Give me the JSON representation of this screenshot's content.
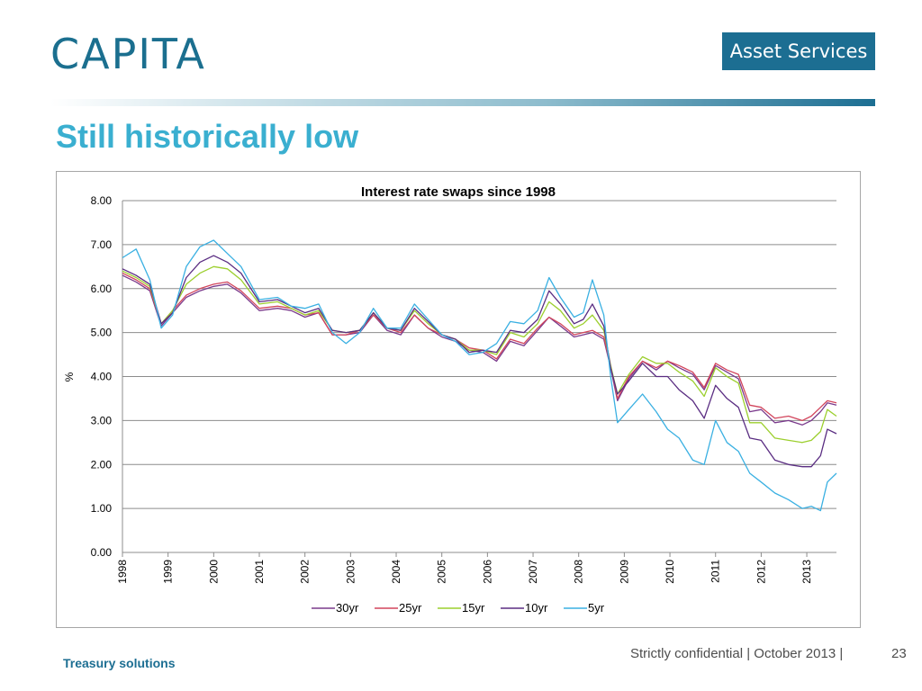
{
  "header": {
    "logo_text": "CAPITA",
    "badge_text": "Asset Services",
    "slide_title": "Still historically low"
  },
  "footer": {
    "left": "Treasury solutions",
    "right": "Strictly confidential | October 2013 |",
    "page": "23"
  },
  "colors": {
    "logo": "#1b6f8f",
    "badge_bg": "#1c6e92",
    "title": "#3aafd0"
  },
  "chart_data": {
    "type": "line",
    "title": "Interest rate swaps since 1998",
    "xlabel": "",
    "ylabel": "%",
    "ylim": [
      0,
      8
    ],
    "xlim": [
      1998.0,
      2013.65
    ],
    "yticks": [
      "0.00",
      "1.00",
      "2.00",
      "3.00",
      "4.00",
      "5.00",
      "6.00",
      "7.00",
      "8.00"
    ],
    "xticks": [
      "1998",
      "1999",
      "2000",
      "2001",
      "2002",
      "2003",
      "2004",
      "2005",
      "2006",
      "2007",
      "2008",
      "2009",
      "2010",
      "2011",
      "2012",
      "2013"
    ],
    "grid": true,
    "legend": "bottom",
    "series": [
      {
        "name": "30yr",
        "color": "#7a3a8c",
        "x": [
          1998.0,
          1998.3,
          1998.6,
          1998.85,
          1999.1,
          1999.4,
          1999.7,
          2000.0,
          2000.3,
          2000.6,
          2001.0,
          2001.4,
          2001.7,
          2002.0,
          2002.3,
          2002.6,
          2002.9,
          2003.2,
          2003.5,
          2003.8,
          2004.1,
          2004.4,
          2004.7,
          2005.0,
          2005.3,
          2005.6,
          2005.9,
          2006.2,
          2006.5,
          2006.8,
          2007.1,
          2007.35,
          2007.6,
          2007.9,
          2008.1,
          2008.3,
          2008.55,
          2008.7,
          2008.85,
          2009.1,
          2009.4,
          2009.7,
          2009.95,
          2010.2,
          2010.5,
          2010.75,
          2011.0,
          2011.25,
          2011.5,
          2011.75,
          2012.0,
          2012.3,
          2012.6,
          2012.9,
          2013.1,
          2013.3,
          2013.45,
          2013.65
        ],
        "values": [
          6.3,
          6.15,
          5.95,
          5.15,
          5.45,
          5.8,
          5.95,
          6.05,
          6.1,
          5.9,
          5.5,
          5.55,
          5.5,
          5.35,
          5.45,
          4.95,
          4.95,
          5.0,
          5.4,
          5.05,
          4.95,
          5.4,
          5.1,
          4.9,
          4.8,
          4.6,
          4.55,
          4.35,
          4.8,
          4.7,
          5.05,
          5.35,
          5.15,
          4.9,
          4.95,
          5.0,
          4.85,
          4.2,
          3.45,
          3.95,
          4.35,
          4.15,
          4.35,
          4.2,
          4.05,
          3.7,
          4.25,
          4.1,
          3.95,
          3.2,
          3.25,
          2.95,
          3.0,
          2.9,
          3.0,
          3.2,
          3.4,
          3.35
        ]
      },
      {
        "name": "25yr",
        "color": "#d2455c",
        "x": [
          1998.0,
          1998.3,
          1998.6,
          1998.85,
          1999.1,
          1999.4,
          1999.7,
          2000.0,
          2000.3,
          2000.6,
          2001.0,
          2001.4,
          2001.7,
          2002.0,
          2002.3,
          2002.6,
          2002.9,
          2003.2,
          2003.5,
          2003.8,
          2004.1,
          2004.4,
          2004.7,
          2005.0,
          2005.3,
          2005.6,
          2005.9,
          2006.2,
          2006.5,
          2006.8,
          2007.1,
          2007.35,
          2007.6,
          2007.9,
          2008.1,
          2008.3,
          2008.55,
          2008.7,
          2008.85,
          2009.1,
          2009.4,
          2009.7,
          2009.95,
          2010.2,
          2010.5,
          2010.75,
          2011.0,
          2011.25,
          2011.5,
          2011.75,
          2012.0,
          2012.3,
          2012.6,
          2012.9,
          2013.1,
          2013.3,
          2013.45,
          2013.65
        ],
        "values": [
          6.35,
          6.2,
          6.0,
          5.2,
          5.5,
          5.85,
          6.0,
          6.1,
          6.15,
          5.95,
          5.55,
          5.6,
          5.55,
          5.4,
          5.45,
          4.95,
          4.95,
          5.05,
          5.4,
          5.1,
          5.0,
          5.4,
          5.1,
          4.95,
          4.85,
          4.65,
          4.6,
          4.4,
          4.85,
          4.75,
          5.1,
          5.35,
          5.2,
          4.95,
          5.0,
          5.05,
          4.9,
          4.25,
          3.5,
          4.0,
          4.35,
          4.2,
          4.35,
          4.25,
          4.1,
          3.75,
          4.3,
          4.15,
          4.05,
          3.35,
          3.3,
          3.05,
          3.1,
          3.0,
          3.1,
          3.3,
          3.45,
          3.4
        ]
      },
      {
        "name": "15yr",
        "color": "#9ccf2e",
        "x": [
          1998.0,
          1998.3,
          1998.6,
          1998.85,
          1999.1,
          1999.4,
          1999.7,
          2000.0,
          2000.3,
          2000.6,
          2001.0,
          2001.4,
          2001.7,
          2002.0,
          2002.3,
          2002.6,
          2002.9,
          2003.2,
          2003.5,
          2003.8,
          2004.1,
          2004.4,
          2004.7,
          2005.0,
          2005.3,
          2005.6,
          2005.9,
          2006.2,
          2006.5,
          2006.8,
          2007.1,
          2007.35,
          2007.6,
          2007.9,
          2008.1,
          2008.3,
          2008.55,
          2008.7,
          2008.85,
          2009.1,
          2009.4,
          2009.7,
          2009.95,
          2010.2,
          2010.5,
          2010.75,
          2011.0,
          2011.25,
          2011.5,
          2011.75,
          2012.0,
          2012.3,
          2012.6,
          2012.9,
          2013.1,
          2013.3,
          2013.45,
          2013.65
        ],
        "values": [
          6.4,
          6.25,
          6.05,
          5.2,
          5.5,
          6.1,
          6.35,
          6.5,
          6.45,
          6.2,
          5.65,
          5.7,
          5.55,
          5.4,
          5.5,
          5.05,
          5.0,
          5.05,
          5.45,
          5.1,
          5.05,
          5.5,
          5.2,
          4.95,
          4.85,
          4.6,
          4.6,
          4.5,
          5.0,
          4.9,
          5.2,
          5.7,
          5.5,
          5.1,
          5.2,
          5.4,
          5.05,
          4.25,
          3.6,
          4.05,
          4.45,
          4.3,
          4.3,
          4.1,
          3.9,
          3.55,
          4.2,
          4.0,
          3.85,
          2.95,
          2.95,
          2.6,
          2.55,
          2.5,
          2.55,
          2.75,
          3.25,
          3.1
        ]
      },
      {
        "name": "10yr",
        "color": "#5a2d82",
        "x": [
          1998.0,
          1998.3,
          1998.6,
          1998.85,
          1999.1,
          1999.4,
          1999.7,
          2000.0,
          2000.3,
          2000.6,
          2001.0,
          2001.4,
          2001.7,
          2002.0,
          2002.3,
          2002.6,
          2002.9,
          2003.2,
          2003.5,
          2003.8,
          2004.1,
          2004.4,
          2004.7,
          2005.0,
          2005.3,
          2005.6,
          2005.9,
          2006.2,
          2006.5,
          2006.8,
          2007.1,
          2007.35,
          2007.6,
          2007.9,
          2008.1,
          2008.3,
          2008.55,
          2008.7,
          2008.85,
          2009.1,
          2009.4,
          2009.7,
          2009.95,
          2010.2,
          2010.5,
          2010.75,
          2011.0,
          2011.25,
          2011.5,
          2011.75,
          2012.0,
          2012.3,
          2012.6,
          2012.9,
          2013.1,
          2013.3,
          2013.45,
          2013.65
        ],
        "values": [
          6.45,
          6.3,
          6.1,
          5.2,
          5.45,
          6.25,
          6.6,
          6.75,
          6.6,
          6.35,
          5.7,
          5.75,
          5.6,
          5.45,
          5.55,
          5.05,
          5.0,
          5.05,
          5.45,
          5.1,
          5.05,
          5.55,
          5.25,
          4.95,
          4.85,
          4.55,
          4.6,
          4.55,
          5.05,
          5.0,
          5.3,
          5.95,
          5.65,
          5.2,
          5.3,
          5.65,
          5.15,
          4.2,
          3.6,
          3.9,
          4.3,
          4.0,
          4.0,
          3.7,
          3.45,
          3.05,
          3.8,
          3.5,
          3.3,
          2.6,
          2.55,
          2.1,
          2.0,
          1.95,
          1.95,
          2.2,
          2.8,
          2.7
        ]
      },
      {
        "name": "5yr",
        "color": "#3ab0e2",
        "x": [
          1998.0,
          1998.3,
          1998.6,
          1998.85,
          1999.1,
          1999.4,
          1999.7,
          2000.0,
          2000.3,
          2000.6,
          2001.0,
          2001.4,
          2001.7,
          2002.0,
          2002.3,
          2002.6,
          2002.9,
          2003.2,
          2003.5,
          2003.8,
          2004.1,
          2004.4,
          2004.7,
          2005.0,
          2005.3,
          2005.6,
          2005.9,
          2006.2,
          2006.5,
          2006.8,
          2007.1,
          2007.35,
          2007.6,
          2007.9,
          2008.1,
          2008.3,
          2008.55,
          2008.7,
          2008.85,
          2009.1,
          2009.4,
          2009.7,
          2009.95,
          2010.2,
          2010.5,
          2010.75,
          2011.0,
          2011.25,
          2011.5,
          2011.75,
          2012.0,
          2012.3,
          2012.6,
          2012.9,
          2013.1,
          2013.3,
          2013.45,
          2013.65
        ],
        "values": [
          6.7,
          6.9,
          6.2,
          5.1,
          5.4,
          6.5,
          6.95,
          7.1,
          6.8,
          6.5,
          5.75,
          5.8,
          5.6,
          5.55,
          5.65,
          5.0,
          4.75,
          5.0,
          5.55,
          5.1,
          5.1,
          5.65,
          5.3,
          4.95,
          4.8,
          4.5,
          4.55,
          4.75,
          5.25,
          5.2,
          5.5,
          6.25,
          5.8,
          5.35,
          5.45,
          6.2,
          5.4,
          4.0,
          2.95,
          3.25,
          3.6,
          3.2,
          2.8,
          2.6,
          2.1,
          2.0,
          3.0,
          2.5,
          2.3,
          1.8,
          1.6,
          1.35,
          1.2,
          1.0,
          1.05,
          0.95,
          1.6,
          1.8
        ]
      }
    ]
  }
}
